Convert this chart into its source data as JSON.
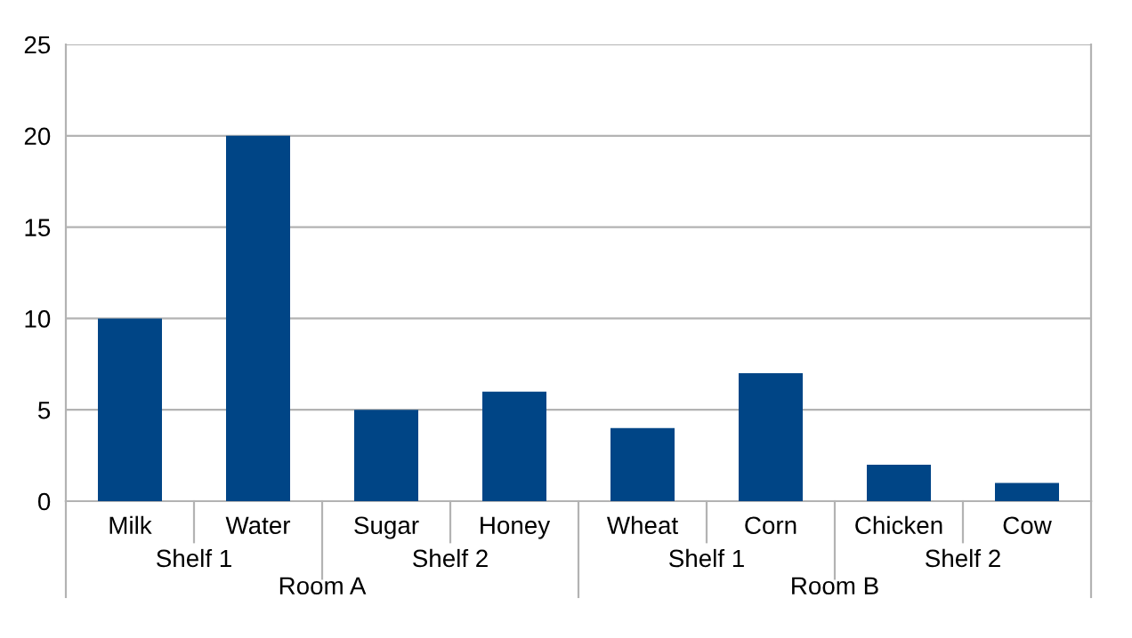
{
  "chart_data": {
    "type": "bar",
    "categories": [
      "Milk",
      "Water",
      "Sugar",
      "Honey",
      "Wheat",
      "Corn",
      "Chicken",
      "Cow"
    ],
    "values": [
      10,
      20,
      5,
      6,
      4,
      7,
      2,
      1
    ],
    "color": "#004586",
    "ylim": [
      0,
      25
    ],
    "yticks": [
      0,
      5,
      10,
      15,
      20,
      25
    ],
    "grid": "y",
    "legend": false,
    "annotations": [
      "Shelf 1",
      "Shelf 2",
      "Shelf 1",
      "Shelf 2",
      "Room A",
      "Room B"
    ]
  }
}
